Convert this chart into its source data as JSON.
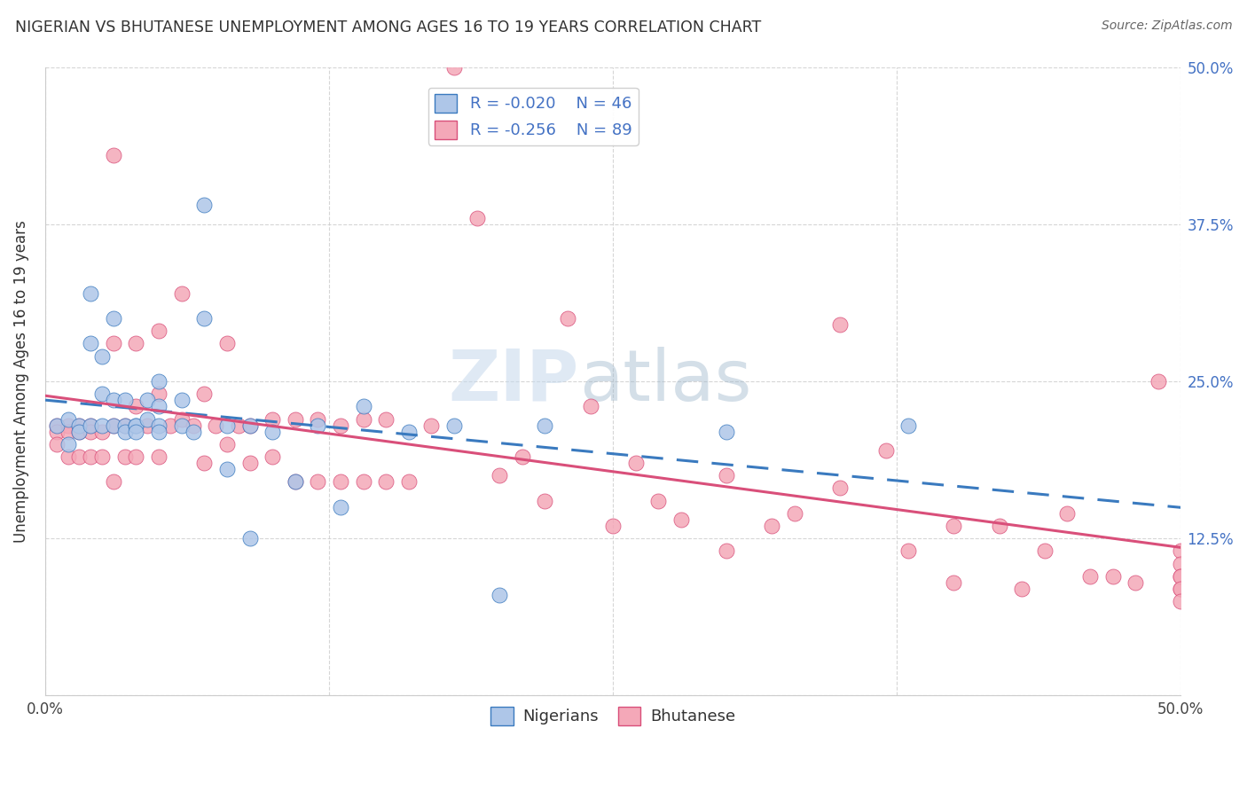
{
  "title": "NIGERIAN VS BHUTANESE UNEMPLOYMENT AMONG AGES 16 TO 19 YEARS CORRELATION CHART",
  "source": "Source: ZipAtlas.com",
  "ylabel": "Unemployment Among Ages 16 to 19 years",
  "xlim": [
    0.0,
    0.5
  ],
  "ylim": [
    0.0,
    0.5
  ],
  "nigerian_color": "#aec6e8",
  "bhutanese_color": "#f4a8b8",
  "nigerian_R": -0.02,
  "nigerian_N": 46,
  "bhutanese_R": -0.256,
  "bhutanese_N": 89,
  "nigerian_line_color": "#3a7abf",
  "bhutanese_line_color": "#d94f7a",
  "watermark_color": "#c8d8e8",
  "nigerian_x": [
    0.005,
    0.01,
    0.01,
    0.015,
    0.015,
    0.02,
    0.02,
    0.02,
    0.025,
    0.025,
    0.025,
    0.03,
    0.03,
    0.03,
    0.035,
    0.035,
    0.035,
    0.04,
    0.04,
    0.04,
    0.045,
    0.045,
    0.05,
    0.05,
    0.05,
    0.05,
    0.06,
    0.06,
    0.065,
    0.07,
    0.07,
    0.08,
    0.08,
    0.09,
    0.09,
    0.1,
    0.11,
    0.12,
    0.13,
    0.14,
    0.16,
    0.18,
    0.2,
    0.22,
    0.3,
    0.38
  ],
  "nigerian_y": [
    0.215,
    0.22,
    0.2,
    0.215,
    0.21,
    0.32,
    0.28,
    0.215,
    0.27,
    0.24,
    0.215,
    0.3,
    0.235,
    0.215,
    0.235,
    0.215,
    0.21,
    0.215,
    0.215,
    0.21,
    0.235,
    0.22,
    0.25,
    0.23,
    0.215,
    0.21,
    0.235,
    0.215,
    0.21,
    0.39,
    0.3,
    0.215,
    0.18,
    0.215,
    0.125,
    0.21,
    0.17,
    0.215,
    0.15,
    0.23,
    0.21,
    0.215,
    0.08,
    0.215,
    0.21,
    0.215
  ],
  "bhutanese_x": [
    0.005,
    0.005,
    0.005,
    0.01,
    0.01,
    0.01,
    0.015,
    0.015,
    0.015,
    0.02,
    0.02,
    0.02,
    0.025,
    0.025,
    0.03,
    0.03,
    0.03,
    0.03,
    0.035,
    0.035,
    0.04,
    0.04,
    0.04,
    0.045,
    0.05,
    0.05,
    0.05,
    0.055,
    0.06,
    0.06,
    0.065,
    0.07,
    0.07,
    0.075,
    0.08,
    0.08,
    0.085,
    0.09,
    0.09,
    0.1,
    0.1,
    0.11,
    0.11,
    0.12,
    0.12,
    0.13,
    0.13,
    0.14,
    0.14,
    0.15,
    0.15,
    0.16,
    0.17,
    0.18,
    0.19,
    0.2,
    0.21,
    0.22,
    0.23,
    0.24,
    0.25,
    0.26,
    0.27,
    0.28,
    0.3,
    0.3,
    0.32,
    0.33,
    0.35,
    0.35,
    0.37,
    0.38,
    0.4,
    0.4,
    0.42,
    0.43,
    0.44,
    0.45,
    0.46,
    0.47,
    0.48,
    0.49,
    0.5,
    0.5,
    0.5,
    0.5,
    0.5,
    0.5,
    0.5
  ],
  "bhutanese_y": [
    0.215,
    0.21,
    0.2,
    0.215,
    0.21,
    0.19,
    0.215,
    0.21,
    0.19,
    0.215,
    0.21,
    0.19,
    0.21,
    0.19,
    0.43,
    0.28,
    0.215,
    0.17,
    0.215,
    0.19,
    0.28,
    0.23,
    0.19,
    0.215,
    0.29,
    0.24,
    0.19,
    0.215,
    0.32,
    0.22,
    0.215,
    0.24,
    0.185,
    0.215,
    0.28,
    0.2,
    0.215,
    0.215,
    0.185,
    0.22,
    0.19,
    0.22,
    0.17,
    0.22,
    0.17,
    0.215,
    0.17,
    0.22,
    0.17,
    0.22,
    0.17,
    0.17,
    0.215,
    0.5,
    0.38,
    0.175,
    0.19,
    0.155,
    0.3,
    0.23,
    0.135,
    0.185,
    0.155,
    0.14,
    0.175,
    0.115,
    0.135,
    0.145,
    0.295,
    0.165,
    0.195,
    0.115,
    0.135,
    0.09,
    0.135,
    0.085,
    0.115,
    0.145,
    0.095,
    0.095,
    0.09,
    0.25,
    0.115,
    0.105,
    0.095,
    0.085,
    0.095,
    0.085,
    0.075
  ]
}
